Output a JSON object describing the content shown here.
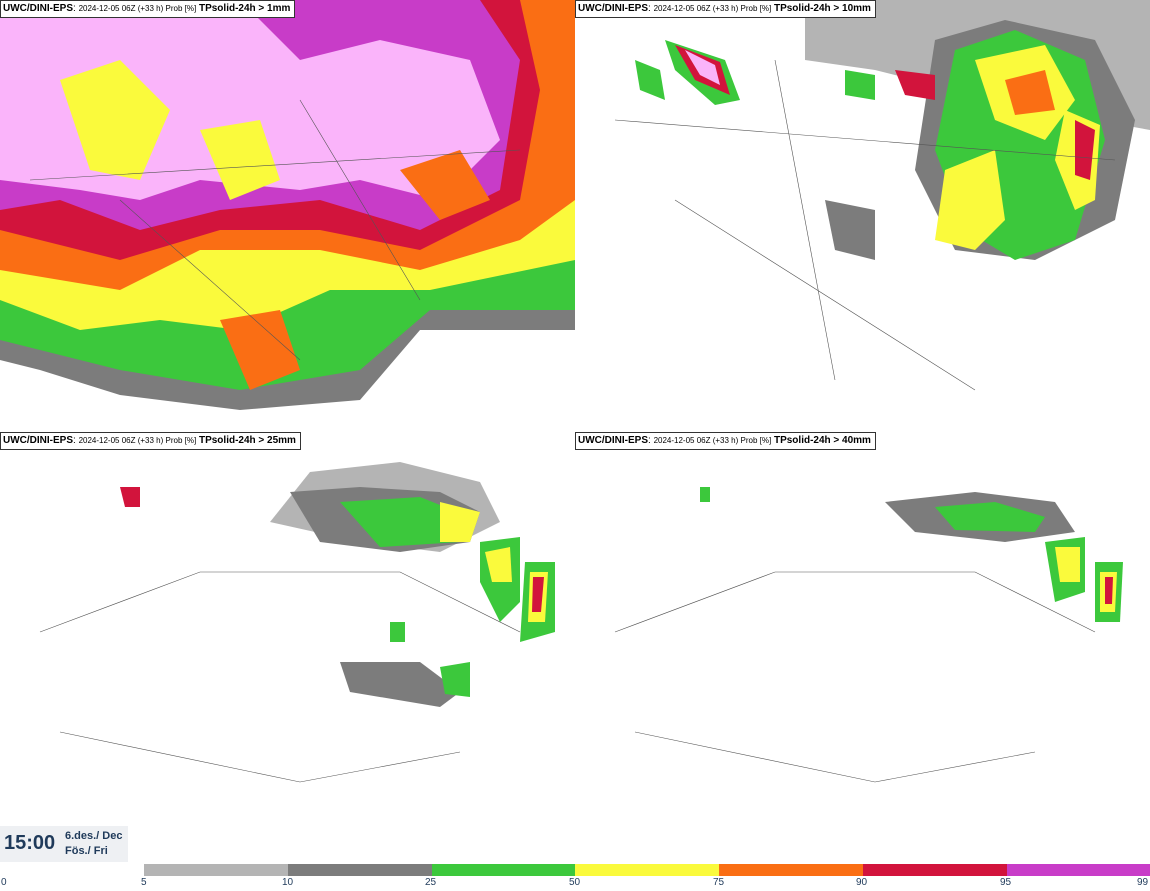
{
  "panels": [
    {
      "source": "UWC/DINI-EPS",
      "run": "2024-12-05 06Z (+33 h) Prob [%]",
      "field": "TPsolid-24h > 1mm"
    },
    {
      "source": "UWC/DINI-EPS",
      "run": "2024-12-05 06Z (+33 h) Prob [%]",
      "field": "TPsolid-24h > 10mm"
    },
    {
      "source": "UWC/DINI-EPS",
      "run": "2024-12-05 06Z (+33 h) Prob [%]",
      "field": "TPsolid-24h > 25mm"
    },
    {
      "source": "UWC/DINI-EPS",
      "run": "2024-12-05 06Z (+33 h) Prob [%]",
      "field": "TPsolid-24h > 40mm"
    }
  ],
  "valid_time": {
    "time": "15:00",
    "date_line1": "6.des./ Dec",
    "date_line2": "Fös./ Fri"
  },
  "legend": {
    "ticks": [
      "0",
      "5",
      "10",
      "25",
      "50",
      "75",
      "90",
      "95",
      "99"
    ],
    "colors": [
      "#b4b4b4",
      "#7c7c7c",
      "#3cc83c",
      "#fafa3c",
      "#fa6e14",
      "#d2143c",
      "#c83cc8",
      "#fab4fa"
    ]
  }
}
